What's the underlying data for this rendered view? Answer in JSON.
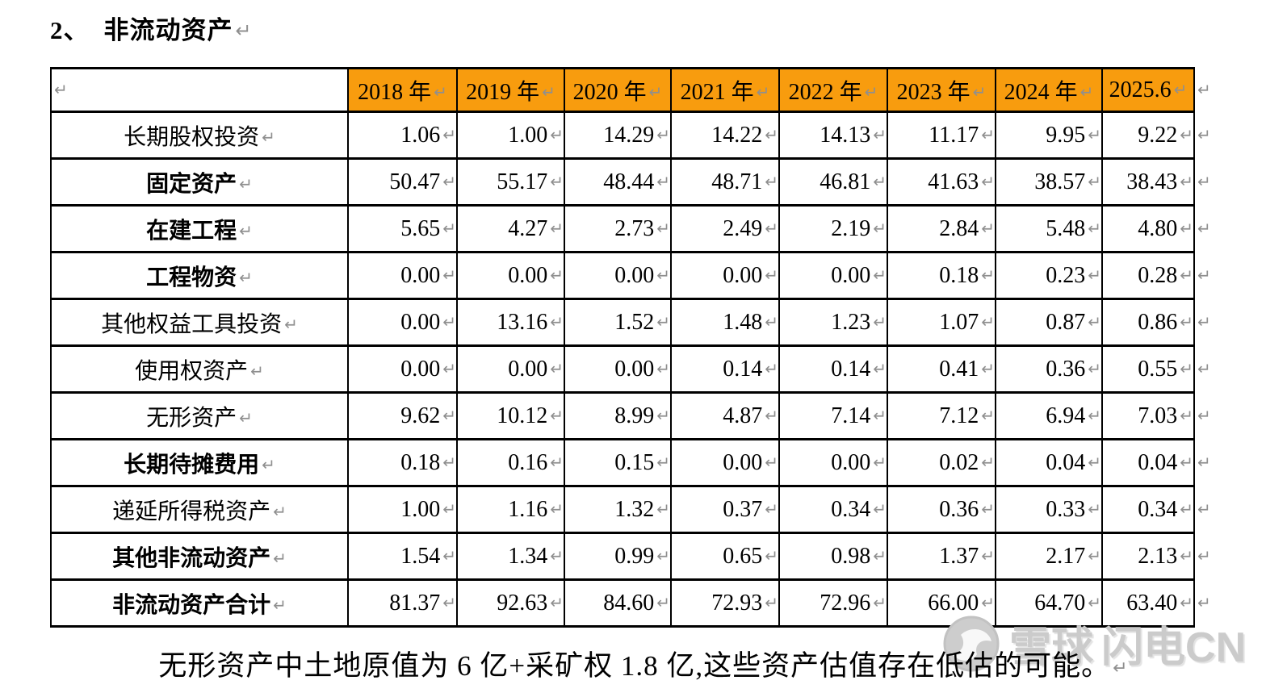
{
  "page": {
    "title_number": "2、",
    "title_text": "非流动资产",
    "footnote": "无形资产中土地原值为 6 亿+采矿权 1.8 亿,这些资产估值存在低估的可能。"
  },
  "marks": {
    "return": "↵"
  },
  "colors": {
    "header_bg": "#F89C0E",
    "border": "#000000",
    "return_mark": "#8F8F8F",
    "watermark": "#CBCBCB"
  },
  "watermark": {
    "brand": "雪球",
    "user": "闪电CN",
    "logo": "xueqiu-snowball-icon"
  },
  "table": {
    "header": [
      "",
      "2018 年",
      "2019 年",
      "2020 年",
      "2021 年",
      "2022 年",
      "2023 年",
      "2024 年",
      "2025.6"
    ],
    "rows": [
      {
        "label": "长期股权投资",
        "bold": false,
        "values": [
          "1.06",
          "1.00",
          "14.29",
          "14.22",
          "14.13",
          "11.17",
          "9.95",
          "9.22"
        ]
      },
      {
        "label": "固定资产",
        "bold": true,
        "values": [
          "50.47",
          "55.17",
          "48.44",
          "48.71",
          "46.81",
          "41.63",
          "38.57",
          "38.43"
        ]
      },
      {
        "label": "在建工程",
        "bold": true,
        "values": [
          "5.65",
          "4.27",
          "2.73",
          "2.49",
          "2.19",
          "2.84",
          "5.48",
          "4.80"
        ]
      },
      {
        "label": "工程物资",
        "bold": true,
        "values": [
          "0.00",
          "0.00",
          "0.00",
          "0.00",
          "0.00",
          "0.18",
          "0.23",
          "0.28"
        ]
      },
      {
        "label": "其他权益工具投资",
        "bold": false,
        "values": [
          "0.00",
          "13.16",
          "1.52",
          "1.48",
          "1.23",
          "1.07",
          "0.87",
          "0.86"
        ]
      },
      {
        "label": "使用权资产",
        "bold": false,
        "values": [
          "0.00",
          "0.00",
          "0.00",
          "0.14",
          "0.14",
          "0.41",
          "0.36",
          "0.55"
        ]
      },
      {
        "label": "无形资产",
        "bold": false,
        "values": [
          "9.62",
          "10.12",
          "8.99",
          "4.87",
          "7.14",
          "7.12",
          "6.94",
          "7.03"
        ]
      },
      {
        "label": "长期待摊费用",
        "bold": true,
        "values": [
          "0.18",
          "0.16",
          "0.15",
          "0.00",
          "0.00",
          "0.02",
          "0.04",
          "0.04"
        ]
      },
      {
        "label": "递延所得税资产",
        "bold": false,
        "values": [
          "1.00",
          "1.16",
          "1.32",
          "0.37",
          "0.34",
          "0.36",
          "0.33",
          "0.34"
        ]
      },
      {
        "label": "其他非流动资产",
        "bold": true,
        "values": [
          "1.54",
          "1.34",
          "0.99",
          "0.65",
          "0.98",
          "1.37",
          "2.17",
          "2.13"
        ]
      },
      {
        "label": "非流动资产合计",
        "bold": true,
        "values": [
          "81.37",
          "92.63",
          "84.60",
          "72.93",
          "72.96",
          "66.00",
          "64.70",
          "63.40"
        ]
      }
    ]
  }
}
